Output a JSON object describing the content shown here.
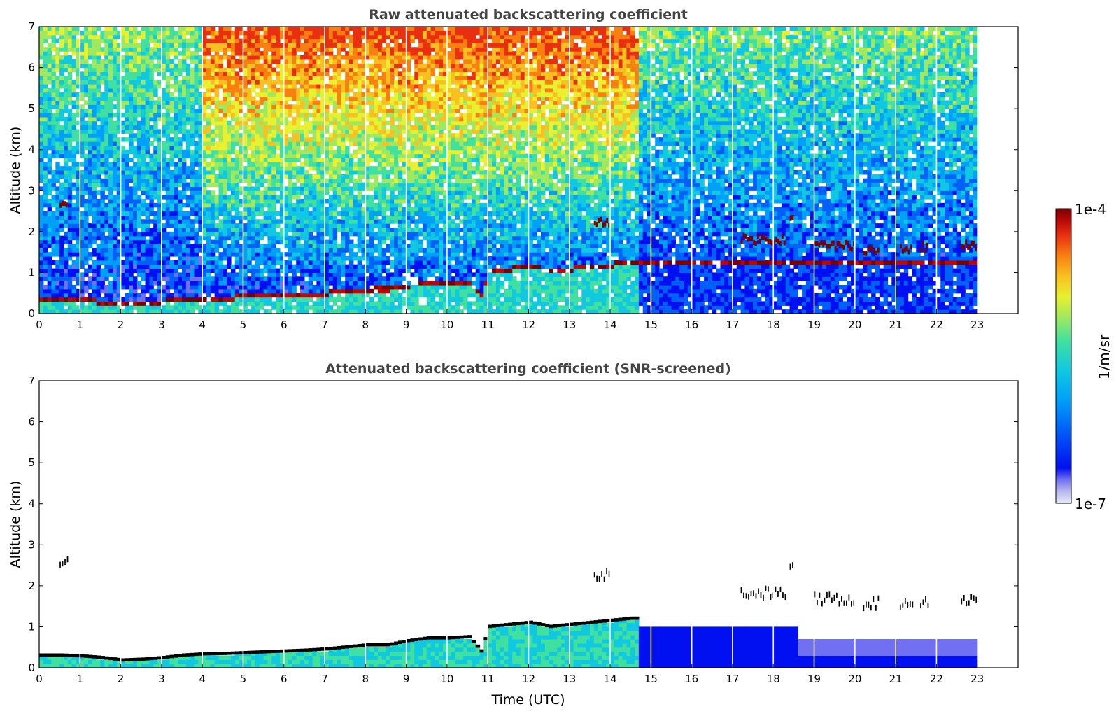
{
  "chart_data": [
    {
      "type": "heatmap",
      "title": "Raw attenuated backscattering coefficient",
      "xlabel": "",
      "ylabel": "Altitude (km)",
      "xlim": [
        0,
        24
      ],
      "ylim": [
        0,
        7
      ],
      "x_ticks": [
        "0",
        "1",
        "2",
        "3",
        "4",
        "5",
        "6",
        "7",
        "8",
        "9",
        "10",
        "11",
        "12",
        "13",
        "14",
        "15",
        "16",
        "17",
        "18",
        "19",
        "20",
        "21",
        "22",
        "23"
      ],
      "y_ticks": [
        "0",
        "1",
        "2",
        "3",
        "4",
        "5",
        "6",
        "7"
      ],
      "data_end_time": 23,
      "color_scale": "log",
      "boundary_layer_top_km": [
        [
          0.1,
          0.3
        ],
        [
          0.5,
          0.3
        ],
        [
          1,
          0.28
        ],
        [
          1.5,
          0.24
        ],
        [
          2,
          0.18
        ],
        [
          2.5,
          0.2
        ],
        [
          3,
          0.24
        ],
        [
          3.5,
          0.3
        ],
        [
          4,
          0.33
        ],
        [
          4.5,
          0.34
        ],
        [
          5,
          0.36
        ],
        [
          5.5,
          0.38
        ],
        [
          6,
          0.4
        ],
        [
          6.5,
          0.42
        ],
        [
          7,
          0.45
        ],
        [
          7.5,
          0.5
        ],
        [
          8,
          0.55
        ],
        [
          8.5,
          0.55
        ],
        [
          9,
          0.65
        ],
        [
          9.5,
          0.72
        ],
        [
          10,
          0.72
        ],
        [
          10.5,
          0.75
        ],
        [
          10.8,
          0.4
        ],
        [
          11,
          1.0
        ],
        [
          11.5,
          1.05
        ],
        [
          12,
          1.1
        ],
        [
          12.5,
          1.0
        ],
        [
          13,
          1.05
        ],
        [
          13.5,
          1.1
        ],
        [
          14,
          1.15
        ],
        [
          14.5,
          1.2
        ]
      ],
      "cloud_layers_km": [
        {
          "t0": 0.5,
          "t1": 0.7,
          "z": 2.55
        },
        {
          "t0": 13.6,
          "t1": 14.0,
          "z": 2.2
        },
        {
          "t0": 17.2,
          "t1": 18.3,
          "z": 1.75
        },
        {
          "t0": 18.4,
          "t1": 18.5,
          "z": 2.35
        },
        {
          "t0": 19.0,
          "t1": 20.0,
          "z": 1.6
        },
        {
          "t0": 20.2,
          "t1": 20.6,
          "z": 1.5
        },
        {
          "t0": 21.1,
          "t1": 21.4,
          "z": 1.5
        },
        {
          "t0": 21.6,
          "t1": 21.8,
          "z": 1.55
        },
        {
          "t0": 22.6,
          "t1": 23.0,
          "z": 1.6
        }
      ]
    },
    {
      "type": "heatmap",
      "title": "Attenuated backscattering coefficient (SNR-screened)",
      "xlabel": "Time (UTC)",
      "ylabel": "Altitude (km)",
      "xlim": [
        0,
        24
      ],
      "ylim": [
        0,
        7
      ],
      "x_ticks": [
        "0",
        "1",
        "2",
        "3",
        "4",
        "5",
        "6",
        "7",
        "8",
        "9",
        "10",
        "11",
        "12",
        "13",
        "14",
        "15",
        "16",
        "17",
        "18",
        "19",
        "20",
        "21",
        "22",
        "23"
      ],
      "y_ticks": [
        "0",
        "1",
        "2",
        "3",
        "4",
        "5",
        "6",
        "7"
      ],
      "data_end_time": 23,
      "screened": true
    }
  ],
  "colorbar": {
    "label": "1/m/sr",
    "max_label": "1e-4",
    "min_label": "1e-7",
    "colormap": [
      "#e8e8f8",
      "#b8b8f0",
      "#7070f0",
      "#0010f0",
      "#0060f8",
      "#00a0f8",
      "#10c8e0",
      "#40e0a0",
      "#a0e860",
      "#e8f030",
      "#f8c020",
      "#f88010",
      "#e83010",
      "#b80808",
      "#7a0000"
    ]
  }
}
